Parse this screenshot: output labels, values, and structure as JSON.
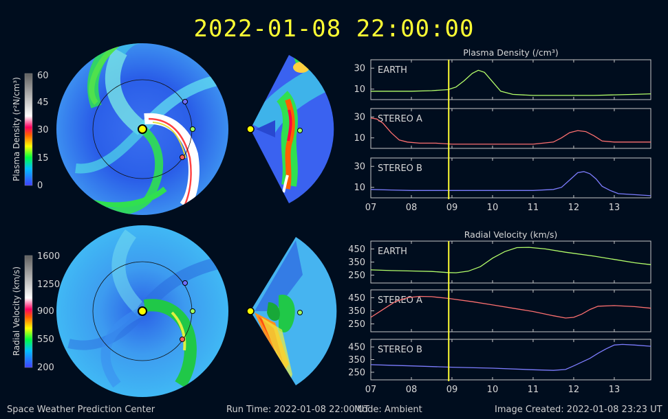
{
  "title": "2022-01-08 22:00:00",
  "footer": {
    "center": "Space Weather Prediction Center",
    "run_time": "Run Time: 2022-01-08 22:00 UT",
    "mode": "Mode: Ambient",
    "created": "Image Created: 2022-01-08 23:23 UT"
  },
  "colorbars": [
    {
      "label": "Plasma Density (r²N/cm³)",
      "ticks": [
        "60",
        "45",
        "30",
        "15",
        "0"
      ]
    },
    {
      "label": "Radial Velocity (km/s)",
      "ticks": [
        "1600",
        "1250",
        "900",
        "550",
        "200"
      ]
    }
  ],
  "chart_data": [
    {
      "type": "line",
      "title": "Plasma Density (/cm³)",
      "x_ticks": [
        "07",
        "08",
        "09",
        "10",
        "11",
        "12",
        "13"
      ],
      "xlim": [
        7,
        13.9
      ],
      "current_time": 8.92,
      "panels": [
        {
          "name": "EARTH",
          "ylim": [
            0,
            38
          ],
          "yticks": [
            "30",
            "10"
          ],
          "color": "#b4ff6a",
          "x": [
            7,
            7.5,
            8,
            8.5,
            8.9,
            9.1,
            9.3,
            9.5,
            9.65,
            9.8,
            10,
            10.2,
            10.5,
            11,
            11.5,
            12,
            12.5,
            13,
            13.5,
            13.9
          ],
          "y": [
            8,
            8,
            8,
            8.5,
            9.5,
            12,
            18,
            25,
            28,
            26,
            17,
            8,
            5,
            4,
            4,
            4,
            4,
            4.5,
            5,
            5.5
          ]
        },
        {
          "name": "STEREO A",
          "ylim": [
            0,
            38
          ],
          "yticks": [
            "30",
            "10"
          ],
          "color": "#ff7070",
          "x": [
            7,
            7.15,
            7.3,
            7.5,
            7.7,
            7.9,
            8.2,
            8.6,
            9,
            9.5,
            10,
            10.5,
            11,
            11.5,
            11.7,
            11.9,
            12.1,
            12.3,
            12.5,
            12.7,
            13,
            13.5,
            13.9
          ],
          "y": [
            29,
            28,
            24,
            15,
            8,
            6,
            5,
            5,
            4,
            4,
            4,
            4,
            4,
            6,
            10,
            15,
            17,
            16,
            12,
            7,
            6,
            6,
            6
          ]
        },
        {
          "name": "STEREO B",
          "ylim": [
            0,
            38
          ],
          "yticks": [
            "30",
            "10"
          ],
          "color": "#7d7dff",
          "x": [
            7,
            7.5,
            8,
            8.5,
            9,
            9.5,
            10,
            10.5,
            11,
            11.5,
            11.7,
            11.9,
            12.1,
            12.25,
            12.4,
            12.55,
            12.7,
            12.9,
            13.1,
            13.5,
            13.9
          ],
          "y": [
            8,
            7.5,
            7,
            7,
            7,
            7,
            7,
            7,
            7,
            8,
            10,
            17,
            24,
            25,
            23,
            18,
            11,
            7,
            4,
            3,
            2
          ]
        }
      ]
    },
    {
      "type": "line",
      "title": "Radial Velocity (km/s)",
      "x_ticks": [
        "07",
        "08",
        "09",
        "10",
        "11",
        "12",
        "13"
      ],
      "xlim": [
        7,
        13.9
      ],
      "current_time": 8.92,
      "panels": [
        {
          "name": "EARTH",
          "ylim": [
            190,
            510
          ],
          "yticks": [
            "450",
            "350",
            "250"
          ],
          "color": "#b4ff6a",
          "x": [
            7,
            7.5,
            8,
            8.5,
            8.9,
            9.1,
            9.4,
            9.7,
            10,
            10.3,
            10.6,
            10.9,
            11.3,
            11.8,
            12.5,
            13,
            13.5,
            13.9
          ],
          "y": [
            290,
            285,
            282,
            278,
            270,
            268,
            280,
            315,
            380,
            430,
            460,
            462,
            450,
            425,
            395,
            370,
            345,
            330
          ]
        },
        {
          "name": "STEREO A",
          "ylim": [
            190,
            510
          ],
          "yticks": [
            "450",
            "350",
            "250"
          ],
          "color": "#ff7070",
          "x": [
            7,
            7.3,
            7.6,
            7.9,
            8.2,
            8.5,
            8.9,
            9.5,
            10,
            10.5,
            11,
            11.5,
            11.8,
            12,
            12.2,
            12.4,
            12.6,
            13,
            13.5,
            13.9
          ],
          "y": [
            300,
            360,
            420,
            450,
            460,
            458,
            445,
            420,
            395,
            370,
            345,
            312,
            295,
            300,
            325,
            360,
            385,
            390,
            382,
            370
          ]
        },
        {
          "name": "STEREO B",
          "ylim": [
            190,
            510
          ],
          "yticks": [
            "450",
            "350",
            "250"
          ],
          "color": "#7d7dff",
          "x": [
            7,
            7.5,
            8,
            9,
            10,
            11,
            11.5,
            11.8,
            12,
            12.2,
            12.4,
            12.6,
            12.8,
            13,
            13.2,
            13.5,
            13.9
          ],
          "y": [
            310,
            305,
            300,
            290,
            282,
            270,
            265,
            272,
            300,
            330,
            360,
            400,
            435,
            465,
            470,
            465,
            455
          ]
        }
      ]
    }
  ]
}
